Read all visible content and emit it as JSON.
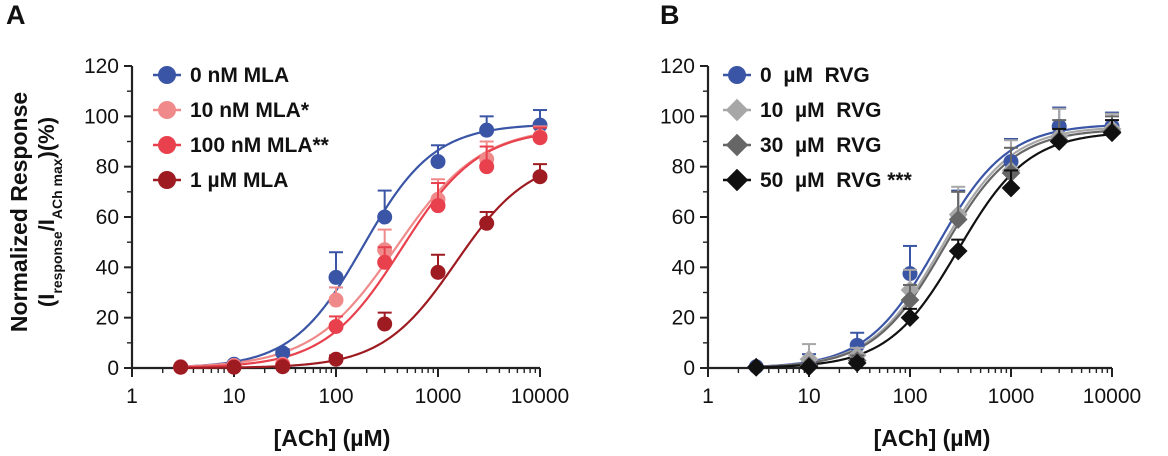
{
  "chart_data": [
    {
      "panel": "A",
      "type": "scatter",
      "title": "",
      "xlabel": "[ACh] (µM)",
      "ylabel_line1": "Normalized Response",
      "ylabel_line2": "(I",
      "ylabel_sub1": "response",
      "ylabel_mid": "/I",
      "ylabel_sub2": "ACh max",
      "ylabel_end": ")(%)",
      "xscale": "log",
      "xlim": [
        1,
        10000
      ],
      "ylim": [
        0,
        120
      ],
      "xticks": [
        "1",
        "10",
        "100",
        "1000",
        "10000"
      ],
      "yticks": [
        "0",
        "20",
        "40",
        "60",
        "80",
        "100",
        "120"
      ],
      "legend_position": "top-left",
      "x": [
        3,
        10,
        30,
        100,
        300,
        1000,
        3000,
        10000
      ],
      "series": [
        {
          "name": "0 nM MLA",
          "color": "#3a55a6",
          "marker": "circle",
          "values": [
            0.5,
            1.5,
            6,
            36,
            60,
            82,
            94.5,
            96.5
          ],
          "errors": [
            1,
            1,
            1.5,
            10,
            10.5,
            6.5,
            5.5,
            6
          ],
          "curve": {
            "top": 97,
            "ec50": 185,
            "hill": 1.25
          }
        },
        {
          "name": "10 nM MLA*",
          "color": "#f08a8a",
          "marker": "circle",
          "values": [
            0.5,
            1,
            1.5,
            27,
            47,
            67,
            83,
            92
          ],
          "errors": [
            1,
            1,
            1,
            5,
            8,
            8,
            7,
            4
          ],
          "curve": {
            "top": 96,
            "ec50": 390,
            "hill": 1.05
          }
        },
        {
          "name": "100 nM MLA**",
          "color": "#e8414d",
          "marker": "circle",
          "values": [
            0.3,
            0.5,
            1,
            16.5,
            42,
            64.5,
            80,
            91.5
          ],
          "errors": [
            0.8,
            0.8,
            1,
            4,
            6,
            9,
            8,
            4
          ],
          "curve": {
            "top": 95,
            "ec50": 440,
            "hill": 1.15
          }
        },
        {
          "name": "1 µM MLA",
          "color": "#9e1b22",
          "marker": "circle",
          "values": [
            0.3,
            0.3,
            0.5,
            3.5,
            17.5,
            38,
            57.5,
            76
          ],
          "errors": [
            0.5,
            0.5,
            0.5,
            1.5,
            4.5,
            7,
            4.5,
            5
          ],
          "curve": {
            "top": 84,
            "ec50": 1500,
            "hill": 1.2
          }
        }
      ]
    },
    {
      "panel": "B",
      "type": "scatter",
      "title": "",
      "xlabel": "[ACh] (µM)",
      "xscale": "log",
      "xlim": [
        1,
        10000
      ],
      "ylim": [
        0,
        120
      ],
      "xticks": [
        "1",
        "10",
        "100",
        "1000",
        "10000"
      ],
      "yticks": [
        "0",
        "20",
        "40",
        "60",
        "80",
        "100",
        "120"
      ],
      "legend_position": "top-left",
      "x": [
        3,
        10,
        30,
        100,
        300,
        1000,
        3000,
        10000
      ],
      "series": [
        {
          "name": "0  µM  RVG",
          "color": "#3a55a6",
          "marker": "circle",
          "values": [
            0.5,
            2.5,
            9,
            37.5,
            60.5,
            82,
            96,
            96
          ],
          "errors": [
            1,
            3,
            5,
            11,
            10,
            9,
            7.5,
            5.5
          ],
          "curve": {
            "top": 97,
            "ec50": 185,
            "hill": 1.25
          }
        },
        {
          "name": "10  µM  RVG",
          "color": "#a7a7a7",
          "marker": "diamond",
          "values": [
            0.3,
            3.5,
            5,
            31,
            61,
            78.5,
            92,
            95
          ],
          "errors": [
            0.8,
            6,
            3,
            8,
            11,
            12,
            11,
            6
          ],
          "curve": {
            "top": 96,
            "ec50": 205,
            "hill": 1.25
          }
        },
        {
          "name": "30  µM  RVG",
          "color": "#666666",
          "marker": "diamond",
          "values": [
            0.3,
            1,
            3,
            27,
            59,
            77.5,
            90.5,
            94
          ],
          "errors": [
            0.8,
            1,
            2,
            6,
            11,
            10,
            8,
            6
          ],
          "curve": {
            "top": 95,
            "ec50": 215,
            "hill": 1.25
          }
        },
        {
          "name": "50  µM  RVG ***",
          "color": "#111111",
          "marker": "diamond",
          "values": [
            0.3,
            0.5,
            2,
            20,
            46.5,
            71.5,
            90,
            93.5
          ],
          "errors": [
            0.5,
            0.8,
            1.5,
            3.5,
            4.5,
            7,
            5,
            5
          ],
          "curve": {
            "top": 94,
            "ec50": 300,
            "hill": 1.25
          }
        }
      ]
    }
  ]
}
